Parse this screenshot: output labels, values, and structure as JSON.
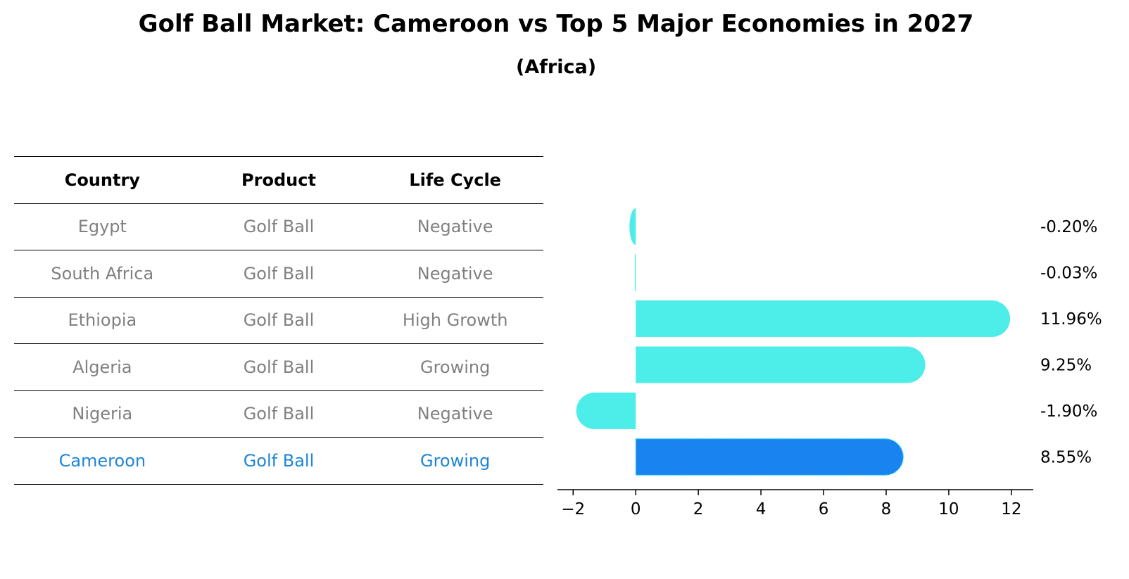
{
  "title": "Golf Ball Market: Cameroon vs Top 5 Major Economies in 2027",
  "subtitle": "(Africa)",
  "table": {
    "headers": [
      "Country",
      "Product",
      "Life Cycle"
    ],
    "rows": [
      {
        "country": "Egypt",
        "product": "Golf Ball",
        "life_cycle": "Negative"
      },
      {
        "country": "South Africa",
        "product": "Golf Ball",
        "life_cycle": "Negative"
      },
      {
        "country": "Ethiopia",
        "product": "Golf Ball",
        "life_cycle": "High Growth"
      },
      {
        "country": "Algeria",
        "product": "Golf Ball",
        "life_cycle": "Growing"
      },
      {
        "country": "Nigeria",
        "product": "Golf Ball",
        "life_cycle": "Negative"
      },
      {
        "country": "Cameroon",
        "product": "Golf Ball",
        "life_cycle": "Growing"
      }
    ]
  },
  "chart_data": {
    "type": "bar",
    "orientation": "horizontal",
    "title": "Golf Ball Market: Cameroon vs Top 5 Major Economies in 2027",
    "subtitle": "(Africa)",
    "categories": [
      "Egypt",
      "South Africa",
      "Ethiopia",
      "Algeria",
      "Nigeria",
      "Cameroon"
    ],
    "values": [
      -0.2,
      -0.03,
      11.96,
      9.25,
      -1.9,
      8.55
    ],
    "value_labels": [
      "-0.20%",
      "-0.03%",
      "11.96%",
      "9.25%",
      "-1.90%",
      "8.55%"
    ],
    "highlight": "Cameroon",
    "xlim": [
      -2.5,
      12.7
    ],
    "xticks": [
      -2,
      0,
      2,
      4,
      6,
      8,
      10,
      12
    ],
    "xtick_labels": [
      "−2",
      "0",
      "2",
      "4",
      "6",
      "8",
      "10",
      "12"
    ],
    "xlabel": "",
    "ylabel": "",
    "grid": false,
    "colors": {
      "bar": "#4deeea",
      "highlight": "#1984f0",
      "highlight_edge": "#4deeea",
      "axis": "#000000",
      "label": "#000000"
    }
  }
}
